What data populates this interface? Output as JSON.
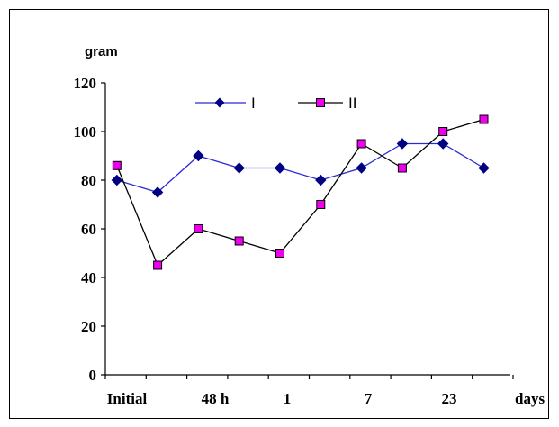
{
  "chart_data": {
    "type": "line",
    "ylabel": "gram",
    "xlabel": "days",
    "ylim": [
      0,
      120
    ],
    "yticks": [
      0,
      20,
      40,
      60,
      80,
      100,
      120
    ],
    "x_tick_labels": [
      "Initial",
      "48 h",
      "1",
      "7",
      "23"
    ],
    "point_count": 10,
    "series": [
      {
        "name": "I",
        "color": "#2b2bd6",
        "marker": "diamond",
        "marker_color": "#000080",
        "values": [
          80,
          75,
          90,
          85,
          85,
          80,
          85,
          95,
          95,
          85
        ]
      },
      {
        "name": "II",
        "color": "#000000",
        "marker": "square",
        "marker_color": "#ee00ee",
        "values": [
          86,
          45,
          60,
          55,
          50,
          70,
          95,
          85,
          100,
          105
        ]
      }
    ],
    "legend_position": "top",
    "grid": false
  }
}
